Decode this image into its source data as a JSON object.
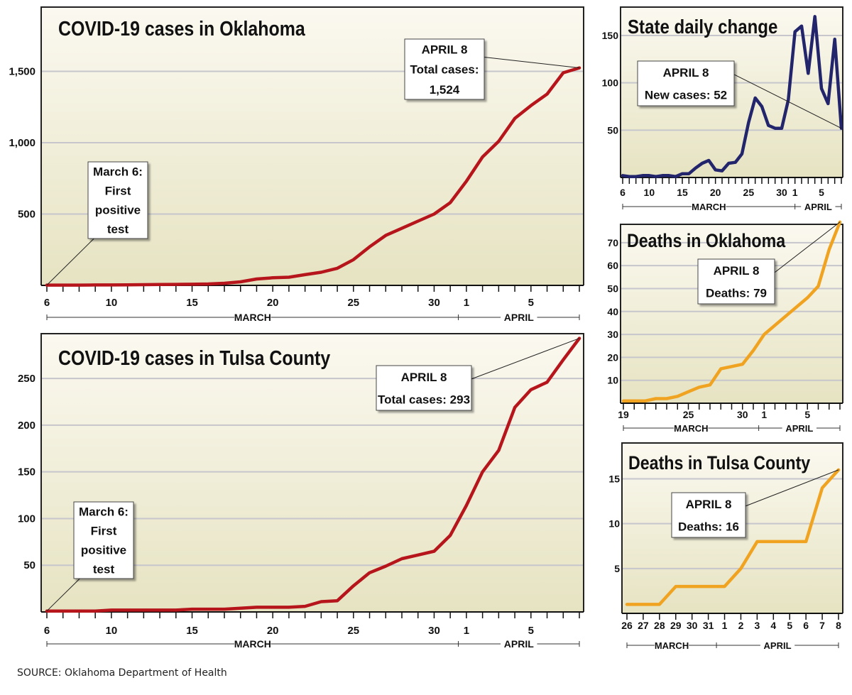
{
  "source": "SOURCE: Oklahoma Department of Health",
  "colors": {
    "red": "#b5151b",
    "navy": "#22256b",
    "orange": "#f0a321",
    "bg_top": "#fbf9f0",
    "bg_bottom": "#e9e6c6",
    "grid": "#c6c6cc",
    "frame": "#222222"
  },
  "chart_data": [
    {
      "id": "ok-cases",
      "type": "line",
      "title": "COVID-19 cases in Oklahoma",
      "series_color": "red",
      "ylim": [
        0,
        1950
      ],
      "yticks": [
        500,
        1000,
        1500
      ],
      "ytick_labels": [
        "500",
        "1,000",
        "1,500"
      ],
      "x_count": 34,
      "xtick_positions": [
        0,
        4,
        9,
        14,
        19,
        24,
        26,
        30
      ],
      "xtick_labels": [
        "6",
        "10",
        "15",
        "20",
        "25",
        "30",
        "1",
        "5"
      ],
      "month_labels": [
        {
          "label": "MARCH",
          "start": 0,
          "end": 25.5
        },
        {
          "label": "APRIL",
          "start": 25.5,
          "end": 33
        }
      ],
      "values": [
        2,
        2,
        2,
        3,
        3,
        4,
        5,
        6,
        7,
        8,
        10,
        15,
        25,
        45,
        53,
        57,
        75,
        92,
        120,
        180,
        270,
        350,
        400,
        450,
        500,
        580,
        730,
        900,
        1010,
        1170,
        1260,
        1340,
        1490,
        1524
      ],
      "annotations": [
        {
          "lines": [
            "APRIL 8",
            "Total cases:",
            "1,524"
          ],
          "index": 33,
          "value": 1524
        },
        {
          "lines": [
            "March 6:",
            "First",
            "positive",
            "test"
          ],
          "index": 0,
          "value": 2
        }
      ]
    },
    {
      "id": "tulsa-cases",
      "type": "line",
      "title": "COVID-19 cases in Tulsa County",
      "series_color": "red",
      "ylim": [
        0,
        298
      ],
      "yticks": [
        50,
        100,
        150,
        200,
        250
      ],
      "ytick_labels": [
        "50",
        "100",
        "150",
        "200",
        "250"
      ],
      "x_count": 34,
      "xtick_positions": [
        0,
        4,
        9,
        14,
        19,
        24,
        26,
        30
      ],
      "xtick_labels": [
        "6",
        "10",
        "15",
        "20",
        "25",
        "30",
        "1",
        "5"
      ],
      "month_labels": [
        {
          "label": "MARCH",
          "start": 0,
          "end": 25.5
        },
        {
          "label": "APRIL",
          "start": 25.5,
          "end": 33
        }
      ],
      "values": [
        1,
        1,
        1,
        1,
        2,
        2,
        2,
        2,
        2,
        3,
        3,
        3,
        4,
        5,
        5,
        5,
        6,
        11,
        12,
        28,
        42,
        49,
        57,
        61,
        65,
        82,
        114,
        150,
        173,
        219,
        238,
        246,
        270,
        293
      ],
      "annotations": [
        {
          "lines": [
            "APRIL 8",
            "Total cases: 293"
          ],
          "index": 33,
          "value": 293
        },
        {
          "lines": [
            "March 6:",
            "First",
            "positive",
            "test"
          ],
          "index": 0,
          "value": 1
        }
      ]
    },
    {
      "id": "state-daily",
      "type": "line",
      "title": "State daily change",
      "series_color": "navy",
      "ylim": [
        0,
        180
      ],
      "yticks": [
        50,
        100,
        150
      ],
      "ytick_labels": [
        "50",
        "100",
        "150"
      ],
      "x_count": 34,
      "xtick_positions": [
        0,
        4,
        9,
        14,
        19,
        24,
        26,
        30
      ],
      "xtick_labels": [
        "6",
        "10",
        "15",
        "20",
        "25",
        "30",
        "1",
        "5"
      ],
      "month_labels": [
        {
          "label": "MARCH",
          "start": 0,
          "end": 26
        },
        {
          "label": "APRIL",
          "start": 26,
          "end": 33
        }
      ],
      "values": [
        2,
        1,
        1,
        2,
        2,
        1,
        2,
        2,
        1,
        4,
        4,
        10,
        15,
        18,
        8,
        7,
        15,
        16,
        25,
        58,
        84,
        75,
        55,
        52,
        52,
        82,
        154,
        160,
        110,
        170,
        94,
        78,
        146,
        52
      ],
      "annotations": [
        {
          "lines": [
            "APRIL 8",
            "New cases: 52"
          ],
          "index": 33,
          "value": 52
        }
      ]
    },
    {
      "id": "ok-deaths",
      "type": "line",
      "title": "Deaths in Oklahoma",
      "series_color": "orange",
      "ylim": [
        0,
        78
      ],
      "yticks": [
        10,
        20,
        30,
        40,
        50,
        60,
        70
      ],
      "ytick_labels": [
        "10",
        "20",
        "30",
        "40",
        "50",
        "60",
        "70"
      ],
      "x_count": 21,
      "xtick_positions": [
        0,
        6,
        11,
        13,
        17
      ],
      "xtick_labels": [
        "19",
        "25",
        "30",
        "1",
        "5"
      ],
      "month_labels": [
        {
          "label": "MARCH",
          "start": 0,
          "end": 12.5
        },
        {
          "label": "APRIL",
          "start": 12.5,
          "end": 20
        }
      ],
      "values": [
        1,
        1,
        1,
        2,
        2,
        3,
        5,
        7,
        8,
        15,
        16,
        17,
        23,
        30,
        34,
        38,
        42,
        46,
        51,
        67,
        79
      ],
      "annotations": [
        {
          "lines": [
            "APRIL 8",
            "Deaths: 79"
          ],
          "index": 20,
          "value": 79
        }
      ]
    },
    {
      "id": "tulsa-deaths",
      "type": "line",
      "title": "Deaths in Tulsa County",
      "series_color": "orange",
      "ylim": [
        0,
        19
      ],
      "yticks": [
        5,
        10,
        15
      ],
      "ytick_labels": [
        "5",
        "10",
        "15"
      ],
      "x_count": 14,
      "xtick_positions": [
        0,
        1,
        2,
        3,
        4,
        5,
        6,
        7,
        8,
        9,
        10,
        11,
        12,
        13
      ],
      "xtick_labels": [
        "26",
        "27",
        "28",
        "29",
        "30",
        "31",
        "1",
        "2",
        "3",
        "4",
        "5",
        "6",
        "7",
        "8"
      ],
      "month_labels": [
        {
          "label": "MARCH",
          "start": 0,
          "end": 5.5
        },
        {
          "label": "APRIL",
          "start": 5.5,
          "end": 13
        }
      ],
      "values": [
        1,
        1,
        1,
        3,
        3,
        3,
        3,
        5,
        8,
        8,
        8,
        8,
        14,
        16
      ],
      "annotations": [
        {
          "lines": [
            "APRIL 8",
            "Deaths: 16"
          ],
          "index": 13,
          "value": 16
        }
      ]
    }
  ]
}
